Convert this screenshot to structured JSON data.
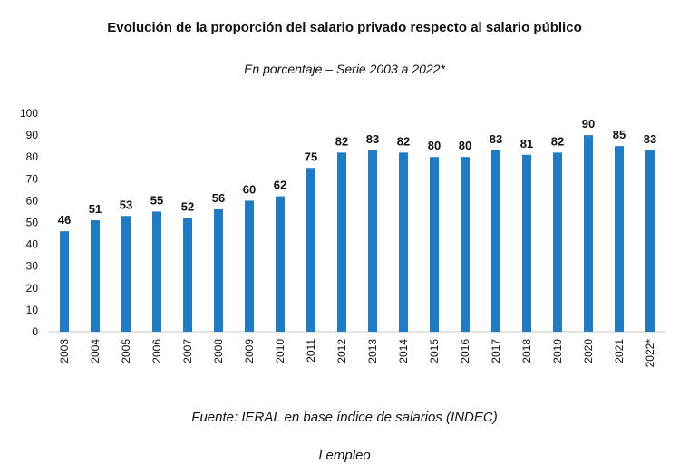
{
  "chart_data": {
    "type": "bar",
    "title": "Evolución de la proporción del salario privado respecto al salario público",
    "subtitle": "En porcentaje – Serie 2003 a 2022*",
    "categories": [
      "2003",
      "2004",
      "2005",
      "2006",
      "2007",
      "2008",
      "2009",
      "2010",
      "2011",
      "2012",
      "2013",
      "2014",
      "2015",
      "2016",
      "2017",
      "2018",
      "2019",
      "2020",
      "2021",
      "2022*"
    ],
    "values": [
      46,
      51,
      53,
      55,
      52,
      56,
      60,
      62,
      75,
      82,
      83,
      82,
      80,
      80,
      83,
      81,
      82,
      90,
      85,
      83
    ],
    "ylim": [
      0,
      100
    ],
    "yticks": [
      0,
      10,
      20,
      30,
      40,
      50,
      60,
      70,
      80,
      90,
      100
    ],
    "xlabel": "",
    "ylabel": "",
    "bar_color": "#1f7bc4",
    "grid": false
  },
  "source": "Fuente: IERAL en base índice de salarios (INDEC)",
  "footer": "I empleo"
}
